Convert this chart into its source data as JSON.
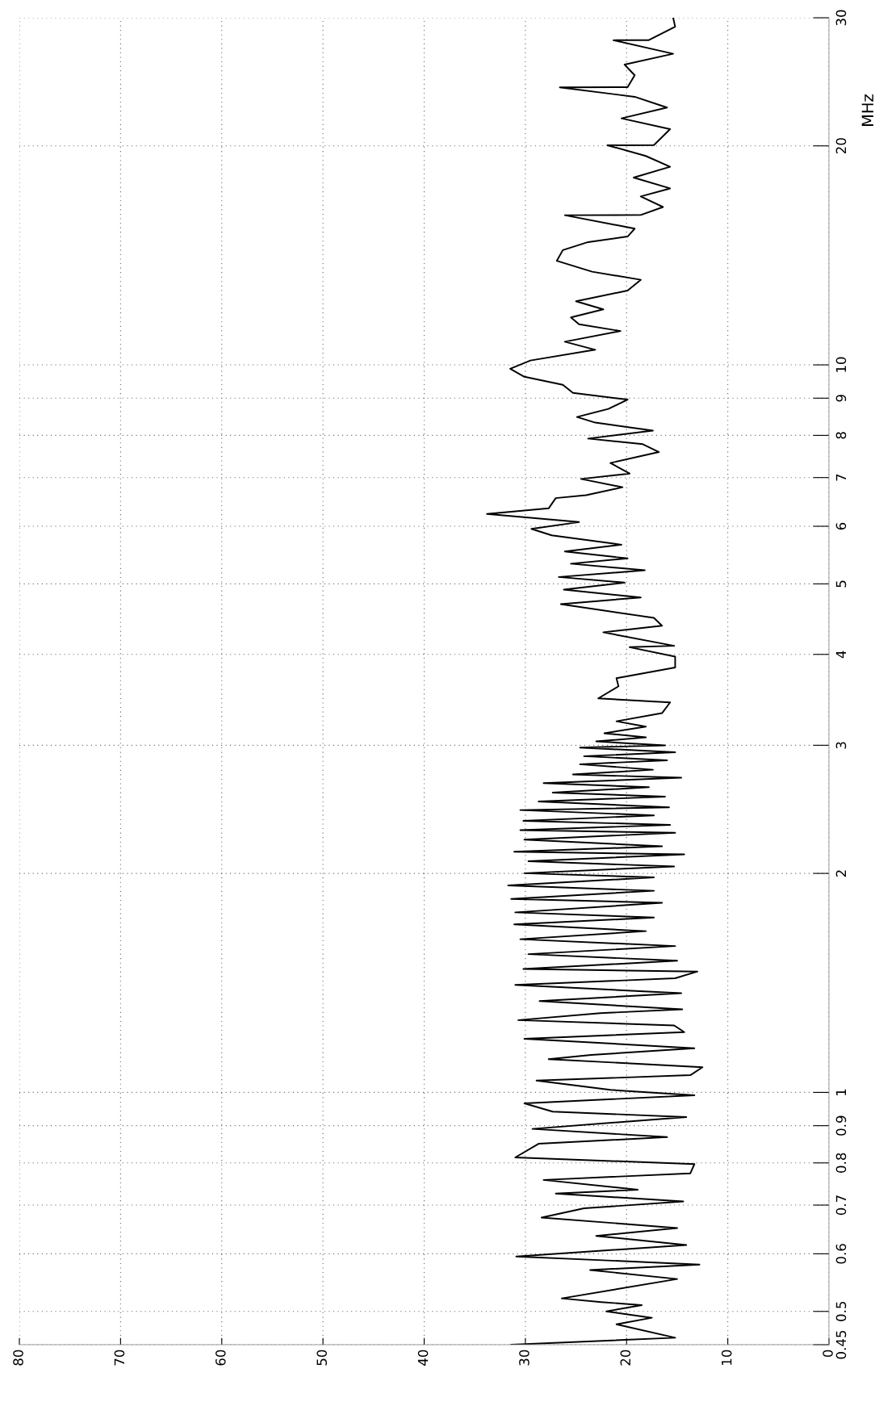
{
  "chart_data": {
    "type": "line",
    "orientation": "horizontal",
    "ylabel": "MHz",
    "xlim": [
      80,
      0
    ],
    "xticks": [
      0,
      10,
      20,
      30,
      40,
      50,
      60,
      70,
      80
    ],
    "ylim": [
      0.45,
      30
    ],
    "yticks": [
      0.45,
      0.5,
      0.6,
      0.7,
      0.8,
      0.9,
      1,
      2,
      3,
      4,
      5,
      6,
      7,
      8,
      9,
      10,
      20,
      30
    ],
    "log": "y",
    "grid": true,
    "marker": "none",
    "line_style": "solid",
    "series": [
      {
        "color": "#000000",
        "x": [
          0.45,
          0.46,
          0.48,
          0.49,
          0.5,
          0.51,
          0.515,
          0.521,
          0.554,
          0.57,
          0.58,
          0.595,
          0.617,
          0.635,
          0.651,
          0.673,
          0.693,
          0.708,
          0.726,
          0.735,
          0.758,
          0.774,
          0.797,
          0.814,
          0.85,
          0.868,
          0.891,
          0.925,
          0.941,
          0.966,
          0.991,
          1.008,
          1.038,
          1.056,
          1.083,
          1.111,
          1.126,
          1.15,
          1.185,
          1.21,
          1.236,
          1.257,
          1.285,
          1.301,
          1.335,
          1.369,
          1.405,
          1.435,
          1.466,
          1.478,
          1.517,
          1.549,
          1.589,
          1.624,
          1.666,
          1.702,
          1.739,
          1.768,
          1.822,
          1.845,
          1.893,
          1.925,
          1.975,
          2.001,
          2.044,
          2.079,
          2.124,
          2.142,
          2.179,
          2.226,
          2.274,
          2.293,
          2.332,
          2.362,
          2.403,
          2.444,
          2.465,
          2.511,
          2.55,
          2.583,
          2.627,
          2.661,
          2.707,
          2.735,
          2.777,
          2.825,
          2.861,
          2.898,
          2.935,
          2.978,
          2.999,
          3.037,
          3.076,
          3.116,
          3.183,
          3.237,
          3.321,
          3.436,
          3.48,
          3.616,
          3.709,
          3.838,
          3.972,
          4.092,
          4.11,
          4.29,
          4.38,
          4.49,
          4.69,
          4.79,
          4.91,
          5.02,
          5.11,
          5.22,
          5.33,
          5.42,
          5.54,
          5.66,
          5.83,
          5.95,
          6.08,
          6.24,
          6.35,
          6.56,
          6.62,
          6.79,
          6.97,
          7.09,
          7.33,
          7.59,
          7.78,
          7.92,
          8.12,
          8.33,
          8.48,
          8.7,
          8.96,
          9.15,
          9.39,
          9.63,
          9.88,
          10.14,
          10.49,
          10.76,
          11.13,
          11.37,
          11.62,
          11.92,
          12.23,
          12.65,
          13.09,
          13.43,
          13.9,
          14.38,
          14.75,
          15.01,
          15.39,
          16.06,
          16.07,
          16.48,
          17.04,
          17.48,
          18.09,
          18.72,
          19.37,
          20.04,
          20.05,
          21.09,
          21.82,
          22.58,
          23.36,
          24.07,
          24.08,
          25.01,
          25.87,
          26.77,
          27.94,
          27.95,
          29.16,
          30.0
        ],
        "values": [
          31.4,
          15.2,
          21.0,
          17.5,
          22.0,
          18.5,
          22.5,
          26.4,
          15.0,
          23.6,
          12.8,
          30.9,
          14.1,
          23.0,
          15.0,
          28.4,
          24.2,
          14.4,
          27.0,
          18.9,
          28.2,
          13.7,
          13.3,
          31.0,
          28.7,
          16.0,
          29.3,
          14.1,
          27.3,
          30.1,
          13.3,
          21.6,
          28.9,
          13.7,
          12.5,
          27.7,
          23.5,
          13.3,
          30.1,
          14.3,
          15.3,
          30.7,
          22.6,
          14.5,
          28.6,
          14.6,
          31.0,
          15.2,
          13.0,
          30.2,
          15.0,
          29.7,
          15.2,
          30.5,
          18.1,
          31.1,
          17.3,
          31.0,
          16.5,
          31.4,
          17.3,
          31.7,
          17.3,
          30.1,
          15.3,
          29.7,
          14.3,
          31.1,
          16.5,
          30.1,
          15.2,
          30.5,
          15.7,
          30.2,
          17.3,
          30.5,
          15.8,
          28.7,
          16.2,
          27.3,
          17.8,
          28.2,
          14.6,
          25.3,
          17.4,
          24.6,
          16.0,
          24.2,
          15.2,
          24.6,
          16.2,
          23.0,
          18.1,
          22.2,
          18.1,
          21.0,
          16.5,
          15.7,
          22.8,
          20.8,
          21.0,
          15.2,
          15.2,
          19.7,
          15.3,
          22.3,
          16.5,
          17.3,
          26.5,
          18.6,
          26.2,
          20.2,
          26.7,
          18.2,
          25.5,
          19.9,
          26.1,
          20.5,
          27.4,
          29.4,
          24.7,
          33.8,
          27.7,
          27.0,
          24.0,
          20.4,
          24.5,
          19.7,
          21.6,
          16.8,
          18.4,
          23.8,
          17.4,
          23.1,
          24.9,
          21.8,
          19.9,
          25.3,
          26.3,
          30.1,
          31.5,
          29.5,
          23.1,
          26.1,
          20.6,
          24.7,
          25.5,
          22.3,
          25.0,
          19.9,
          18.6,
          23.4,
          26.9,
          26.3,
          23.8,
          19.9,
          19.2,
          26.1,
          18.6,
          16.4,
          18.6,
          15.7,
          19.3,
          15.7,
          18.1,
          21.9,
          17.3,
          15.7,
          20.5,
          16.0,
          19.2,
          26.6,
          19.9,
          19.2,
          20.2,
          15.4,
          21.3,
          17.8,
          15.2,
          15.4
        ]
      }
    ]
  }
}
